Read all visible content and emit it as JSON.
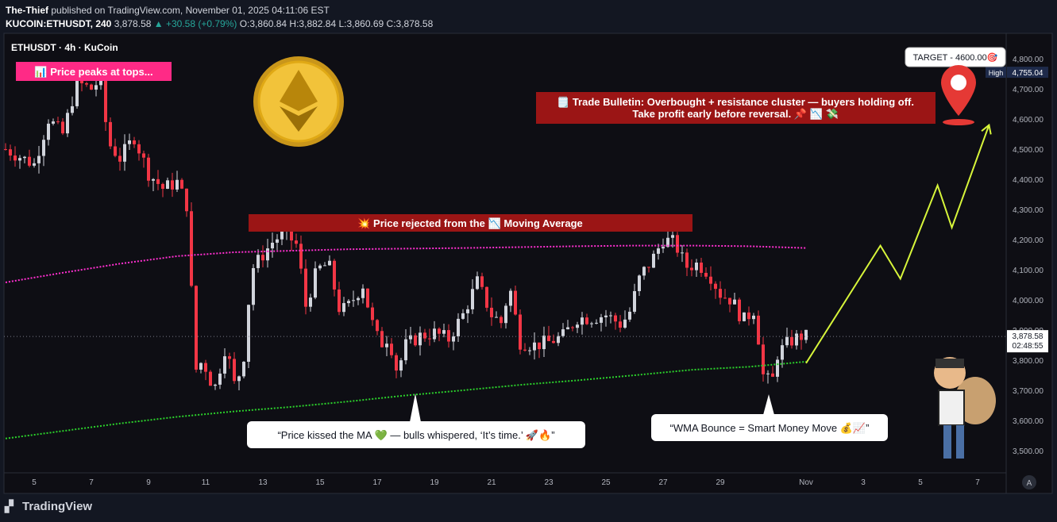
{
  "header": {
    "publisher": "The-Thief",
    "published_line": "published on TradingView.com, November 01, 2025 04:11:06 EST",
    "symbol_line_prefix": "KUCOIN:ETHUSDT, 240",
    "last": "3,878.58",
    "change": "▲ +30.58 (+0.79%)",
    "ohlc": "O:3,860.84 H:3,882.84 L:3,860.69 C:3,878.58"
  },
  "symbol_label": "ETHUSDT · 4h · KuCoin",
  "footer": {
    "brand": "TradingView"
  },
  "colors": {
    "background": "#131722",
    "bull": "#d1d4dc",
    "bear": "#f23645",
    "ma_magenta": "#ff2fd0",
    "ma_green": "#2bd12b",
    "projection": "#d7f53a",
    "banner_red": "#9b1515",
    "banner_pink": "#ff2a86"
  },
  "chart_data": {
    "type": "candlestick",
    "xlabel": "",
    "ylabel": "",
    "ylim": [
      3440,
      4870
    ],
    "y_ticks": [
      "4,800.00",
      "4,700.00",
      "4,600.00",
      "4,500.00",
      "4,400.00",
      "4,300.00",
      "4,200.00",
      "4,100.00",
      "4,000.00",
      "3,900.00",
      "3,800.00",
      "3,700.00",
      "3,600.00",
      "3,500.00"
    ],
    "y_tick_values": [
      4800,
      4700,
      4600,
      4500,
      4400,
      4300,
      4200,
      4100,
      4000,
      3900,
      3800,
      3700,
      3600,
      3500
    ],
    "x_ticks": [
      "5",
      "7",
      "9",
      "11",
      "13",
      "15",
      "17",
      "19",
      "21",
      "23",
      "25",
      "27",
      "29",
      "Nov",
      "3",
      "5",
      "7"
    ],
    "x_tick_days": [
      5,
      7,
      9,
      11,
      13,
      15,
      17,
      19,
      21,
      23,
      25,
      27,
      29,
      32,
      34,
      36,
      38
    ],
    "candle_anchors": [
      [
        4,
        4500
      ],
      [
        5,
        4450
      ],
      [
        5.5,
        4600
      ],
      [
        6,
        4550
      ],
      [
        6.5,
        4720
      ],
      [
        7,
        4700
      ],
      [
        7.3,
        4730
      ],
      [
        7.6,
        4520
      ],
      [
        8,
        4470
      ],
      [
        8.5,
        4540
      ],
      [
        9,
        4420
      ],
      [
        9.5,
        4370
      ],
      [
        10,
        4390
      ],
      [
        10.4,
        4300
      ],
      [
        10.6,
        3760
      ],
      [
        10.9,
        3800
      ],
      [
        11.3,
        3700
      ],
      [
        11.7,
        3850
      ],
      [
        12,
        3720
      ],
      [
        12.3,
        3780
      ],
      [
        12.6,
        4100
      ],
      [
        13,
        4150
      ],
      [
        13.4,
        4200
      ],
      [
        13.8,
        4220
      ],
      [
        14.2,
        4180
      ],
      [
        14.5,
        3980
      ],
      [
        14.9,
        4100
      ],
      [
        15.3,
        4120
      ],
      [
        15.7,
        3960
      ],
      [
        16,
        3980
      ],
      [
        16.5,
        4050
      ],
      [
        16.8,
        3930
      ],
      [
        17.1,
        3850
      ],
      [
        17.4,
        3880
      ],
      [
        17.7,
        3760
      ],
      [
        18,
        3850
      ],
      [
        18.5,
        3880
      ],
      [
        19,
        3890
      ],
      [
        19.5,
        3870
      ],
      [
        19.8,
        3920
      ],
      [
        20,
        3950
      ],
      [
        20.5,
        4060
      ],
      [
        21,
        3950
      ],
      [
        21.4,
        3920
      ],
      [
        21.6,
        4060
      ],
      [
        22,
        3860
      ],
      [
        22.5,
        3850
      ],
      [
        23,
        3860
      ],
      [
        23.5,
        3880
      ],
      [
        24,
        3940
      ],
      [
        24.5,
        3940
      ],
      [
        25,
        3950
      ],
      [
        25.5,
        3920
      ],
      [
        25.8,
        3950
      ],
      [
        26.2,
        4080
      ],
      [
        26.6,
        4130
      ],
      [
        27,
        4200
      ],
      [
        27.4,
        4190
      ],
      [
        27.8,
        4110
      ],
      [
        28.2,
        4120
      ],
      [
        28.6,
        4090
      ],
      [
        29,
        4020
      ],
      [
        29.4,
        4000
      ],
      [
        29.8,
        3930
      ],
      [
        30.2,
        3970
      ],
      [
        30.5,
        3750
      ],
      [
        30.8,
        3720
      ],
      [
        31,
        3820
      ],
      [
        31.4,
        3860
      ],
      [
        31.8,
        3880
      ],
      [
        32,
        3878
      ]
    ],
    "last_price": 3878.58,
    "last_price_label": "3,878.58",
    "countdown": "02:48:55",
    "high_label": "High",
    "high_value": "4,755.04",
    "high_price": 4755.04,
    "target_price": 4600,
    "series": [
      {
        "name": "",
        "type": "moving_average",
        "color": "#ff2fd0",
        "points": [
          [
            4,
            4058
          ],
          [
            6,
            4090
          ],
          [
            8,
            4120
          ],
          [
            10,
            4145
          ],
          [
            12,
            4158
          ],
          [
            14,
            4163
          ],
          [
            16,
            4168
          ],
          [
            18,
            4170
          ],
          [
            20,
            4172
          ],
          [
            22,
            4175
          ],
          [
            24,
            4178
          ],
          [
            26,
            4180
          ],
          [
            28,
            4180
          ],
          [
            30,
            4178
          ],
          [
            32,
            4172
          ]
        ]
      },
      {
        "name": "",
        "type": "moving_average",
        "color": "#2bd12b",
        "points": [
          [
            4,
            3540
          ],
          [
            6,
            3565
          ],
          [
            8,
            3590
          ],
          [
            10,
            3612
          ],
          [
            12,
            3630
          ],
          [
            14,
            3645
          ],
          [
            16,
            3663
          ],
          [
            18,
            3683
          ],
          [
            20,
            3700
          ],
          [
            22,
            3718
          ],
          [
            24,
            3733
          ],
          [
            26,
            3750
          ],
          [
            28,
            3768
          ],
          [
            30,
            3778
          ],
          [
            32,
            3795
          ]
        ]
      },
      {
        "name": "",
        "type": "projection",
        "color": "#d7f53a",
        "points": [
          [
            32,
            3790
          ],
          [
            34.6,
            4180
          ],
          [
            35.3,
            4070
          ],
          [
            36.6,
            4380
          ],
          [
            37.1,
            4240
          ],
          [
            38.4,
            4580
          ]
        ]
      }
    ]
  },
  "annotations": {
    "peaks_banner": "📊 Price peaks at tops...",
    "rejected_banner": "💥 Price rejected from the 📉 Moving Average",
    "bulletin_line1": "🗒️ Trade Bulletin: Overbought + resistance cluster — buyers holding off.",
    "bulletin_line2": "Take profit early before reversal. 📌 📉 💸",
    "kissed_bubble": "“Price kissed the MA 💚 — bulls whispered, ‘It’s time.’ 🚀🔥”",
    "wma_bubble": "“WMA Bounce = Smart Money Move 💰📈”",
    "target_label": "TARGET - 4600.00🎯"
  }
}
